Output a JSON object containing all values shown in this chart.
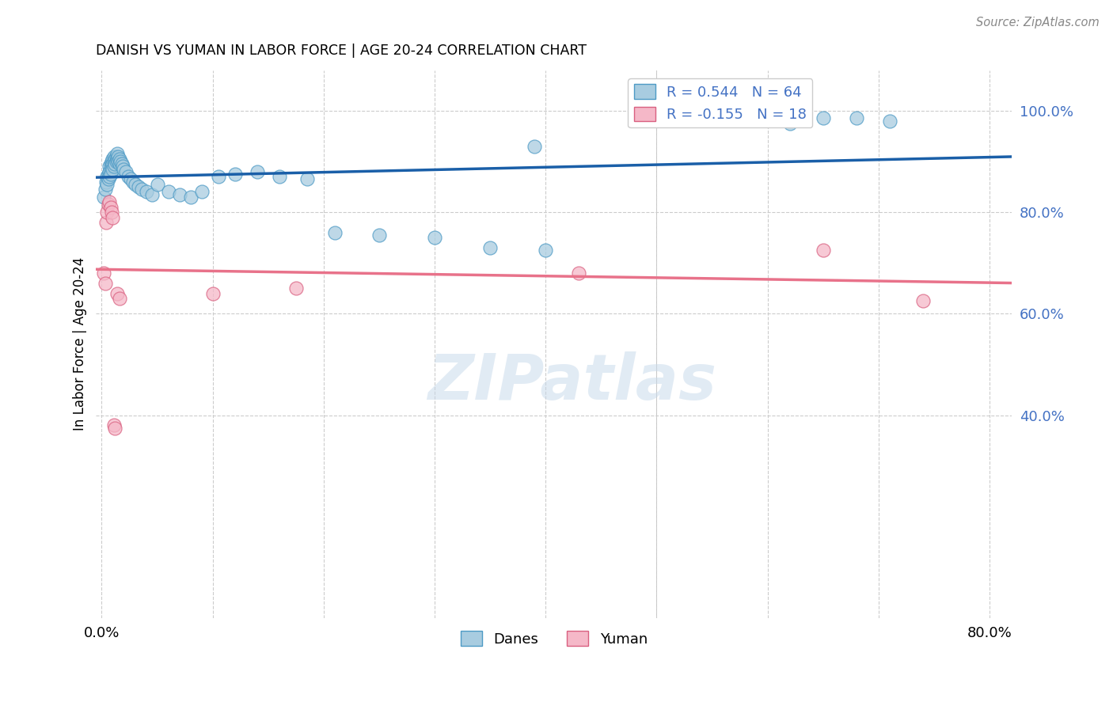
{
  "title": "DANISH VS YUMAN IN LABOR FORCE | AGE 20-24 CORRELATION CHART",
  "source": "Source: ZipAtlas.com",
  "ylabel": "In Labor Force | Age 20-24",
  "xlim": [
    -0.005,
    0.82
  ],
  "ylim": [
    0.0,
    1.08
  ],
  "ytick_vals": [
    0.4,
    0.6,
    0.8,
    1.0
  ],
  "ytick_labels": [
    "40.0%",
    "60.0%",
    "80.0%",
    "100.0%"
  ],
  "xtick_vals": [
    0.0,
    0.1,
    0.2,
    0.3,
    0.4,
    0.5,
    0.6,
    0.7,
    0.8
  ],
  "xtick_labels": [
    "0.0%",
    "",
    "",
    "",
    "",
    "",
    "",
    "",
    "80.0%"
  ],
  "danes_color": "#a8cce0",
  "danes_edge_color": "#4d9ac5",
  "yuman_color": "#f5b8c8",
  "yuman_edge_color": "#d96080",
  "danes_line_color": "#1a5fa8",
  "yuman_line_color": "#e8728a",
  "legend_danes_label": "R = 0.544   N = 64",
  "legend_yuman_label": "R = -0.155   N = 18",
  "watermark": "ZIPatlas",
  "danes_x": [
    0.002,
    0.003,
    0.004,
    0.005,
    0.005,
    0.006,
    0.006,
    0.007,
    0.007,
    0.007,
    0.008,
    0.008,
    0.008,
    0.009,
    0.009,
    0.01,
    0.01,
    0.01,
    0.011,
    0.011,
    0.011,
    0.012,
    0.012,
    0.013,
    0.013,
    0.014,
    0.014,
    0.015,
    0.015,
    0.016,
    0.016,
    0.017,
    0.018,
    0.019,
    0.02,
    0.022,
    0.024,
    0.026,
    0.028,
    0.03,
    0.033,
    0.036,
    0.04,
    0.045,
    0.05,
    0.06,
    0.07,
    0.08,
    0.09,
    0.105,
    0.12,
    0.14,
    0.16,
    0.185,
    0.21,
    0.25,
    0.3,
    0.35,
    0.4,
    0.39,
    0.62,
    0.65,
    0.68,
    0.71
  ],
  "danes_y": [
    0.83,
    0.845,
    0.86,
    0.87,
    0.855,
    0.875,
    0.865,
    0.89,
    0.88,
    0.87,
    0.895,
    0.885,
    0.875,
    0.9,
    0.89,
    0.905,
    0.895,
    0.885,
    0.91,
    0.9,
    0.89,
    0.905,
    0.895,
    0.91,
    0.9,
    0.915,
    0.905,
    0.91,
    0.9,
    0.905,
    0.895,
    0.9,
    0.895,
    0.89,
    0.885,
    0.88,
    0.87,
    0.865,
    0.86,
    0.855,
    0.85,
    0.845,
    0.84,
    0.835,
    0.855,
    0.84,
    0.835,
    0.83,
    0.84,
    0.87,
    0.875,
    0.88,
    0.87,
    0.865,
    0.76,
    0.755,
    0.75,
    0.73,
    0.725,
    0.93,
    0.975,
    0.985,
    0.985,
    0.98
  ],
  "yuman_x": [
    0.002,
    0.003,
    0.004,
    0.005,
    0.006,
    0.007,
    0.008,
    0.009,
    0.01,
    0.011,
    0.012,
    0.014,
    0.016,
    0.1,
    0.175,
    0.43,
    0.65,
    0.74
  ],
  "yuman_y": [
    0.68,
    0.66,
    0.78,
    0.8,
    0.815,
    0.82,
    0.81,
    0.8,
    0.79,
    0.38,
    0.375,
    0.64,
    0.63,
    0.64,
    0.65,
    0.68,
    0.725,
    0.625
  ]
}
